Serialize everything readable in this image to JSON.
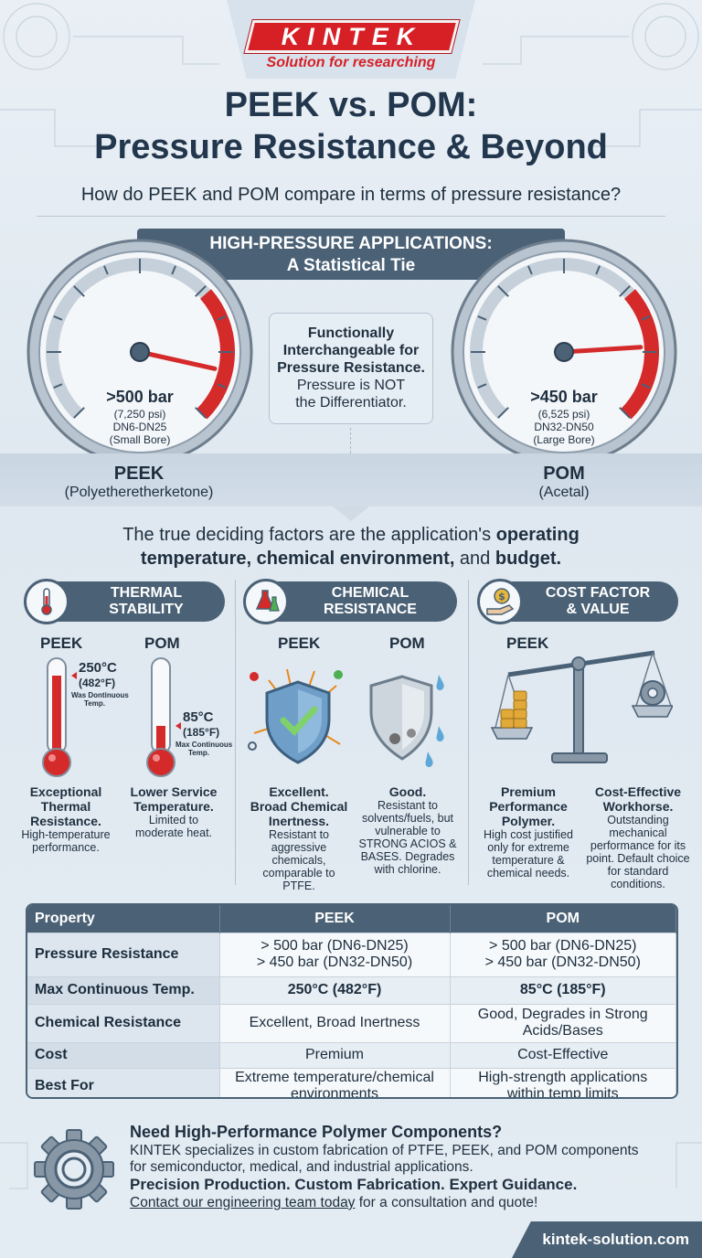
{
  "brand": {
    "logo": "KINTEK",
    "tagline": "Solution for researching",
    "website": "kintek-solution.com"
  },
  "header": {
    "title_line1": "PEEK vs. POM:",
    "title_line2": "Pressure Resistance & Beyond",
    "question": "How do PEEK and POM compare in terms of pressure resistance?"
  },
  "pressure": {
    "banner_line1": "HIGH-PRESSURE APPLICATIONS:",
    "banner_line2": "A Statistical Tie",
    "peek_gauge": {
      "value": ">500 bar",
      "psi": "(7,250 psi)",
      "range": "DN6-DN25",
      "bore": "(Small Bore)",
      "needle_level": 0.88
    },
    "pom_gauge": {
      "value": ">450 bar",
      "psi": "(6,525 psi)",
      "range": "DN32-DN50",
      "bore": "(Large Bore)",
      "needle_level": 0.82
    },
    "center_line1": "Functionally",
    "center_line2": "Interchangeable for",
    "center_line3": "Pressure Resistance.",
    "center_line4": "Pressure is NOT",
    "center_line5": "the Differentiator.",
    "peek_name": "PEEK",
    "peek_full": "(Polyetheretherketone)",
    "pom_name": "POM",
    "pom_full": "(Acetal)"
  },
  "factors": {
    "line1_normal": "The true deciding factors are the application's ",
    "line1_bold": "operating",
    "line2_bold": "temperature, chemical environment,",
    "line2_normal": " and ",
    "line2_bold2": "budget."
  },
  "thermal": {
    "header_line1": "THERMAL",
    "header_line2": "STABILITY",
    "icon": "thermometer-icon",
    "peek_label": "PEEK",
    "pom_label": "POM",
    "peek_temp": "250°C",
    "peek_temp_f": "(482°F)",
    "peek_note1": "Was Dontinuous",
    "peek_note2": "Temp.",
    "pom_temp": "85°C",
    "pom_temp_f": "(185°F)",
    "pom_note1": "Max Continuous",
    "pom_note2": "Temp.",
    "peek_fill": 0.85,
    "pom_fill": 0.3,
    "peek_desc_b1": "Exceptional",
    "peek_desc_b2": "Thermal",
    "peek_desc_b3": "Resistance.",
    "peek_desc1": "High-temperature",
    "peek_desc2": "performance.",
    "pom_desc_b1": "Lower Service",
    "pom_desc_b2": "Temperature.",
    "pom_desc1": "Limited to",
    "pom_desc2": "moderate heat."
  },
  "chemical": {
    "header_line1": "CHEMICAL",
    "header_line2": "RESISTANCE",
    "icon": "flask-icon",
    "peek_label": "PEEK",
    "pom_label": "POM",
    "peek_desc_b1": "Excellent.",
    "peek_desc_b2": "Broad Chemical",
    "peek_desc_b3": "Inertness.",
    "peek_desc1": "Resistant to",
    "peek_desc2": "aggressive",
    "peek_desc3": "chemicals,",
    "peek_desc4": "comparable to PTFE.",
    "pom_desc_b1": "Good.",
    "pom_desc1": "Resistant to",
    "pom_desc2": "solvents/fuels, but",
    "pom_desc3": "vulnerable to",
    "pom_desc4": "STRONG ACIOS &",
    "pom_desc5": "BASES. Degrades",
    "pom_desc6": "with chlorine."
  },
  "cost": {
    "header_line1": "COST FACTOR",
    "header_line2": "& VALUE",
    "icon": "money-hand-icon",
    "peek_label": "PEEK",
    "peek_desc_b1": "Premium",
    "peek_desc_b2": "Performance",
    "peek_desc_b3": "Polymer.",
    "peek_desc1": "High cost justified",
    "peek_desc2": "only for extreme",
    "peek_desc3": "temperature &",
    "peek_desc4": "chemical needs.",
    "pom_desc_b1": "Cost-Effective",
    "pom_desc_b2": "Workhorse.",
    "pom_desc1": "Outstanding",
    "pom_desc2": "mechanical",
    "pom_desc3": "performance for its",
    "pom_desc4": "point. Default choice",
    "pom_desc5": "for standard",
    "pom_desc6": "conditions."
  },
  "table": {
    "headers": [
      "Property",
      "PEEK",
      "POM"
    ],
    "rows": [
      {
        "label": "Pressure Resistance",
        "peek1": "> 500 bar (DN6-DN25)",
        "peek2": "> 450 bar (DN32-DN50)",
        "pom1": "> 500 bar (DN6-DN25)",
        "pom2": "> 450 bar (DN32-DN50)"
      },
      {
        "label": "Max Continuous Temp.",
        "peek": "250°C (482°F)",
        "pom": "85°C (185°F)"
      },
      {
        "label": "Chemical Resistance",
        "peek": "Excellent, Broad Inertness",
        "pom1": "Good, Degrades in Strong",
        "pom2": "Acids/Bases"
      },
      {
        "label": "Cost",
        "peek": "Premium",
        "pom": "Cost-Effective"
      },
      {
        "label": "Best For",
        "peek1": "Extreme temperature/chemical",
        "peek2": "environments",
        "pom1": "High-strength applications",
        "pom2": "within temp limits"
      }
    ]
  },
  "cta": {
    "title": "Need High-Performance Polymer Components?",
    "text1": "KINTEK specializes in custom fabrication of PTFE, PEEK, and POM components",
    "text2": "for semiconductor, medical, and industrial applications.",
    "bold": "Precision Production. Custom Fabrication. Expert Guidance.",
    "link": "Contact our engineering team today",
    "link_suffix": " for a consultation and quote!",
    "icon": "gear-icon"
  },
  "colors": {
    "accent": "#4a6176",
    "brand_red": "#d71f26",
    "gauge_red": "#d42a2a"
  }
}
